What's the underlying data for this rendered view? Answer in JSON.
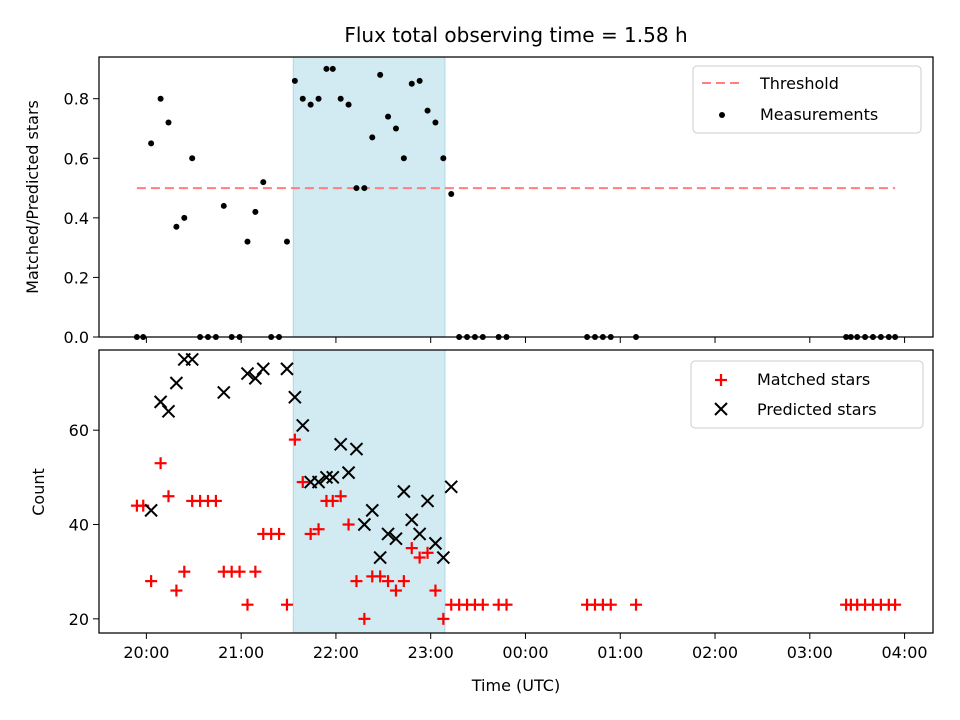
{
  "chart_data": [
    {
      "type": "scatter",
      "title": "Flux total observing time = 1.58 h",
      "ylabel": "Matched/Predicted stars",
      "ylim": [
        0,
        0.94
      ],
      "yticks": [
        0.0,
        0.2,
        0.4,
        0.6,
        0.8
      ],
      "ytick_labels": [
        "0.0",
        "0.2",
        "0.4",
        "0.6",
        "0.8"
      ],
      "xticks_visible_labels": false,
      "grid": false,
      "legend_position": "top-right",
      "shaded_interval": {
        "start": "21:33",
        "end": "23:09",
        "color": "#add8e6"
      },
      "threshold": {
        "name": "Threshold",
        "value": 0.5,
        "x_start": "19:54",
        "x_end": "03:54",
        "color": "#ff7f7f",
        "style": "dashed"
      },
      "measurements": {
        "name": "Measurements",
        "color": "#000000",
        "x": [
          "19:54",
          "19:58",
          "20:03",
          "20:09",
          "20:14",
          "20:19",
          "20:24",
          "20:29",
          "20:34",
          "20:39",
          "20:44",
          "20:49",
          "20:54",
          "20:59",
          "21:04",
          "21:09",
          "21:14",
          "21:19",
          "21:24",
          "21:29",
          "21:34",
          "21:39",
          "21:44",
          "21:49",
          "21:54",
          "21:58",
          "22:03",
          "22:08",
          "22:13",
          "22:18",
          "22:23",
          "22:28",
          "22:33",
          "22:38",
          "22:43",
          "22:48",
          "22:53",
          "22:58",
          "23:03",
          "23:08",
          "23:13",
          "23:18",
          "23:23",
          "23:28",
          "23:33",
          "23:43",
          "23:48",
          "00:39",
          "00:44",
          "00:49",
          "00:54",
          "01:10",
          "03:23",
          "03:26",
          "03:30",
          "03:35",
          "03:40",
          "03:45",
          "03:50",
          "03:54"
        ],
        "y": [
          0.0,
          0.0,
          0.65,
          0.8,
          0.72,
          0.37,
          0.4,
          0.6,
          0.0,
          0.0,
          0.0,
          0.44,
          0.0,
          0.0,
          0.32,
          0.42,
          0.52,
          0.0,
          0.0,
          0.32,
          0.86,
          0.8,
          0.78,
          0.8,
          0.9,
          0.9,
          0.8,
          0.78,
          0.5,
          0.5,
          0.67,
          0.88,
          0.74,
          0.7,
          0.6,
          0.85,
          0.86,
          0.76,
          0.72,
          0.6,
          0.48,
          0.0,
          0.0,
          0.0,
          0.0,
          0.0,
          0.0,
          0.0,
          0.0,
          0.0,
          0.0,
          0.0,
          0.0,
          0.0,
          0.0,
          0.0,
          0.0,
          0.0,
          0.0,
          0.0
        ]
      },
      "legend": [
        "Threshold",
        "Measurements"
      ]
    },
    {
      "type": "scatter",
      "ylabel": "Count",
      "xlabel": "Time (UTC)",
      "ylim": [
        17,
        77
      ],
      "yticks": [
        20,
        40,
        60
      ],
      "ytick_labels": [
        "20",
        "40",
        "60"
      ],
      "xtick_labels": [
        "20:00",
        "21:00",
        "22:00",
        "23:00",
        "00:00",
        "01:00",
        "02:00",
        "03:00",
        "04:00"
      ],
      "grid": false,
      "legend_position": "top-right",
      "shaded_interval": {
        "start": "21:33",
        "end": "23:09",
        "color": "#add8e6"
      },
      "series": [
        {
          "name": "Matched stars",
          "marker": "plus",
          "color": "#ff0000",
          "x": [
            "19:54",
            "19:58",
            "20:03",
            "20:09",
            "20:14",
            "20:19",
            "20:24",
            "20:29",
            "20:34",
            "20:39",
            "20:44",
            "20:49",
            "20:54",
            "20:59",
            "21:04",
            "21:09",
            "21:14",
            "21:19",
            "21:24",
            "21:29",
            "21:34",
            "21:39",
            "21:44",
            "21:49",
            "21:54",
            "21:58",
            "22:03",
            "22:08",
            "22:13",
            "22:18",
            "22:23",
            "22:28",
            "22:33",
            "22:38",
            "22:43",
            "22:48",
            "22:53",
            "22:58",
            "23:03",
            "23:08",
            "23:13",
            "23:18",
            "23:23",
            "23:28",
            "23:33",
            "23:43",
            "23:48",
            "00:39",
            "00:44",
            "00:49",
            "00:54",
            "01:10",
            "03:23",
            "03:26",
            "03:30",
            "03:35",
            "03:40",
            "03:45",
            "03:50",
            "03:54"
          ],
          "y": [
            44,
            44,
            28,
            53,
            46,
            26,
            30,
            45,
            45,
            45,
            45,
            30,
            30,
            30,
            23,
            30,
            38,
            38,
            38,
            23,
            58,
            49,
            38,
            39,
            45,
            45,
            46,
            40,
            28,
            20,
            29,
            29,
            28,
            26,
            28,
            35,
            33,
            34,
            26,
            20,
            23,
            23,
            23,
            23,
            23,
            23,
            23,
            23,
            23,
            23,
            23,
            23,
            23,
            23,
            23,
            23,
            23,
            23,
            23,
            23
          ]
        },
        {
          "name": "Predicted stars",
          "marker": "x",
          "color": "#000000",
          "x": [
            "20:03",
            "20:09",
            "20:14",
            "20:19",
            "20:24",
            "20:29",
            "20:49",
            "21:04",
            "21:09",
            "21:14",
            "21:29",
            "21:34",
            "21:39",
            "21:44",
            "21:49",
            "21:54",
            "21:58",
            "22:03",
            "22:08",
            "22:13",
            "22:18",
            "22:23",
            "22:28",
            "22:33",
            "22:38",
            "22:43",
            "22:48",
            "22:53",
            "22:58",
            "23:03",
            "23:08",
            "23:13"
          ],
          "y": [
            43,
            66,
            64,
            70,
            75,
            75,
            68,
            72,
            71,
            73,
            73,
            67,
            61,
            49,
            49,
            50,
            50,
            57,
            51,
            56,
            40,
            43,
            33,
            38,
            37,
            47,
            41,
            38,
            45,
            36,
            33,
            48
          ]
        }
      ],
      "legend": [
        "Matched stars",
        "Predicted stars"
      ]
    }
  ]
}
